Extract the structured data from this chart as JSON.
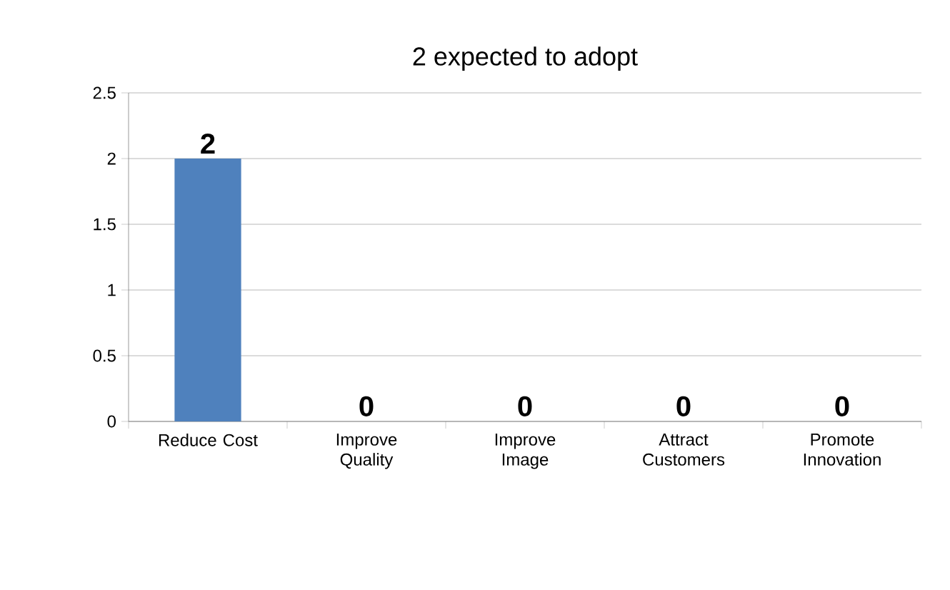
{
  "chart_data": {
    "type": "bar",
    "title": "2 expected to adopt",
    "categories": [
      "Reduce Cost",
      "Improve Quality",
      "Improve Image",
      "Attract Customers",
      "Promote Innovation"
    ],
    "values": [
      2,
      0,
      0,
      0,
      0
    ],
    "color": "#4f81bd",
    "ylim": [
      0,
      2.5
    ],
    "yticks": [
      0,
      0.5,
      1,
      1.5,
      2,
      2.5
    ],
    "grid": "y",
    "data_labels": true
  }
}
